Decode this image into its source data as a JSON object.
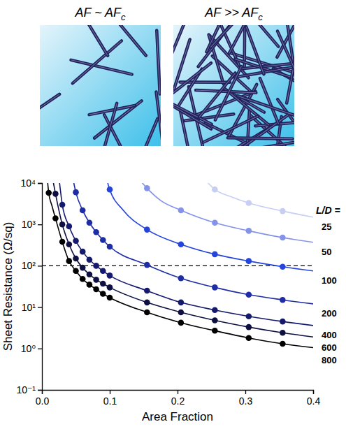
{
  "schematic": {
    "panels": [
      {
        "label": "AF ~ AF",
        "label_subscript": "c"
      },
      {
        "label": "AF >> AF",
        "label_subscript": "c"
      }
    ]
  },
  "chart_data": {
    "type": "scatter",
    "x_label": "Area Fraction",
    "y_label": "Sheet Resistance (Ω/sq)",
    "log": "y",
    "grid": false,
    "legend": "right",
    "xlim": [
      0,
      0.4
    ],
    "xticks": [
      {
        "value": 0,
        "label": "0.0"
      },
      0.1,
      0.2,
      0.3,
      0.4
    ],
    "ylim": [
      0.1,
      10000
    ],
    "yticks": [
      {
        "value": 0.1,
        "label": "10⁻¹"
      },
      {
        "value": 1,
        "label": "10⁰"
      },
      {
        "value": 10,
        "label": "10¹"
      },
      {
        "value": 100,
        "label": "10²"
      },
      {
        "value": 1000,
        "label": "10³"
      },
      {
        "value": 10000,
        "label": "10⁴"
      }
    ],
    "annotations": [
      {
        "type": "hline",
        "y": 100,
        "line_style": "dashed"
      },
      {
        "text": "L/D ="
      }
    ],
    "series": [
      {
        "name": "25",
        "color": "#c6cff3",
        "marker": "circle",
        "line_style": "solid",
        "x": [
          0.255,
          0.305,
          0.355
        ],
        "values": [
          7000,
          3300,
          2100
        ],
        "fit_x": [
          0.245,
          0.255,
          0.28,
          0.305,
          0.355,
          0.4
        ],
        "fit_values": [
          10000,
          7000,
          4600,
          3300,
          2100,
          1500
        ]
      },
      {
        "name": "50",
        "color": "#8393ea",
        "marker": "circle",
        "line_style": "solid",
        "x": [
          0.155,
          0.205,
          0.255,
          0.305,
          0.355
        ],
        "values": [
          7500,
          2200,
          1100,
          700,
          480
        ],
        "fit_x": [
          0.148,
          0.155,
          0.175,
          0.205,
          0.255,
          0.305,
          0.355,
          0.4
        ],
        "fit_values": [
          10000,
          7500,
          3800,
          2200,
          1100,
          700,
          480,
          370
        ]
      },
      {
        "name": "100",
        "color": "#2444dc",
        "marker": "circle",
        "line_style": "solid",
        "x": [
          0.1,
          0.155,
          0.205,
          0.255,
          0.305,
          0.355
        ],
        "values": [
          7000,
          750,
          330,
          190,
          130,
          95
        ],
        "fit_x": [
          0.097,
          0.1,
          0.12,
          0.155,
          0.205,
          0.255,
          0.305,
          0.355,
          0.4
        ],
        "fit_values": [
          10000,
          7000,
          2200,
          750,
          330,
          190,
          130,
          95,
          75
        ]
      },
      {
        "name": "200",
        "color": "#1e2ca6",
        "marker": "circle",
        "line_style": "solid",
        "x": [
          0.05,
          0.06,
          0.07,
          0.08,
          0.09,
          0.1,
          0.155,
          0.205,
          0.255,
          0.305,
          0.355
        ],
        "values": [
          6000,
          2200,
          1100,
          650,
          420,
          290,
          105,
          50,
          30,
          20,
          15
        ],
        "fit_x": [
          0.047,
          0.05,
          0.06,
          0.07,
          0.08,
          0.09,
          0.1,
          0.155,
          0.205,
          0.255,
          0.305,
          0.355,
          0.4
        ],
        "fit_values": [
          10000,
          6000,
          2200,
          1100,
          650,
          420,
          290,
          105,
          50,
          30,
          20,
          15,
          12
        ]
      },
      {
        "name": "400",
        "color": "#161a6e",
        "marker": "circle",
        "line_style": "solid",
        "x": [
          0.03,
          0.04,
          0.05,
          0.06,
          0.07,
          0.08,
          0.09,
          0.1,
          0.155,
          0.205,
          0.255,
          0.305,
          0.355
        ],
        "values": [
          3000,
          900,
          400,
          220,
          140,
          100,
          75,
          58,
          25,
          13,
          8.5,
          6,
          4.5
        ],
        "fit_x": [
          0.026,
          0.03,
          0.04,
          0.05,
          0.06,
          0.07,
          0.08,
          0.09,
          0.1,
          0.155,
          0.205,
          0.255,
          0.305,
          0.355,
          0.4
        ],
        "fit_values": [
          10000,
          3000,
          900,
          400,
          220,
          140,
          100,
          75,
          58,
          25,
          13,
          8.5,
          6,
          4.5,
          3.6
        ]
      },
      {
        "name": "600",
        "color": "#0e1042",
        "marker": "circle",
        "line_style": "solid",
        "x": [
          0.02,
          0.03,
          0.04,
          0.05,
          0.06,
          0.07,
          0.08,
          0.09,
          0.1,
          0.155,
          0.205,
          0.255,
          0.305,
          0.355
        ],
        "values": [
          5500,
          1000,
          330,
          150,
          90,
          62,
          46,
          37,
          30,
          13,
          7.5,
          4.8,
          3.3,
          2.4
        ],
        "fit_x": [
          0.017,
          0.02,
          0.03,
          0.04,
          0.05,
          0.06,
          0.07,
          0.08,
          0.09,
          0.1,
          0.155,
          0.205,
          0.255,
          0.305,
          0.355,
          0.4
        ],
        "fit_values": [
          10000,
          5500,
          1000,
          330,
          150,
          90,
          62,
          46,
          37,
          30,
          13,
          7.5,
          4.8,
          3.3,
          2.4,
          1.9
        ]
      },
      {
        "name": "800",
        "color": "#000000",
        "marker": "circle",
        "line_style": "solid",
        "x": [
          0.01,
          0.02,
          0.03,
          0.04,
          0.05,
          0.06,
          0.07,
          0.08,
          0.09,
          0.1,
          0.155,
          0.205,
          0.255,
          0.305,
          0.355
        ],
        "values": [
          5800,
          1400,
          380,
          130,
          75,
          48,
          35,
          27,
          21,
          17,
          7.5,
          4.2,
          2.7,
          1.8,
          1.3
        ],
        "fit_x": [
          0.0085,
          0.01,
          0.015,
          0.02,
          0.03,
          0.04,
          0.05,
          0.06,
          0.07,
          0.08,
          0.09,
          0.1,
          0.155,
          0.205,
          0.255,
          0.305,
          0.355,
          0.4
        ],
        "fit_values": [
          10000,
          5800,
          2750,
          1400,
          380,
          130,
          75,
          48,
          35,
          27,
          21,
          17,
          7.5,
          4.2,
          2.7,
          1.8,
          1.3,
          1.05
        ]
      }
    ]
  }
}
